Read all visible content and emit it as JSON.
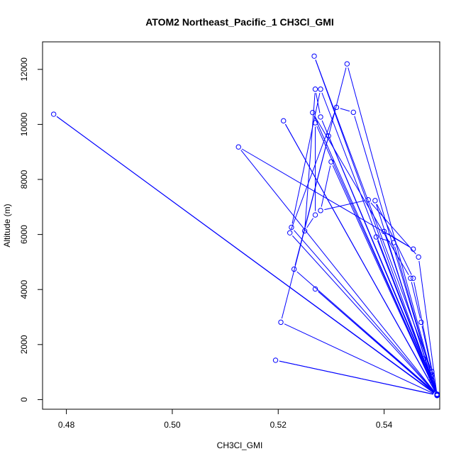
{
  "chart_data": {
    "type": "line",
    "title": "ATOM2 Northeast_Pacific_1 CH3Cl_GMI",
    "xlabel": "CH3Cl_GMI",
    "ylabel": "Altitude (m)",
    "xlim": [
      0.4755,
      0.5505
    ],
    "ylim": [
      -350,
      13000
    ],
    "x_ticks": [
      0.48,
      0.5,
      0.52,
      0.54
    ],
    "x_tick_labels": [
      "0.48",
      "0.50",
      "0.52",
      "0.54"
    ],
    "y_ticks": [
      0,
      2000,
      4000,
      6000,
      8000,
      10000,
      12000
    ],
    "y_tick_labels": [
      "0",
      "2000",
      "4000",
      "6000",
      "8000",
      "10000",
      "12000"
    ],
    "grid": false,
    "legend": "none",
    "series": [
      {
        "color": "#0000ff",
        "marker": "open-circle",
        "points": [
          [
            0.55,
            150
          ],
          [
            0.4776,
            10370
          ],
          [
            0.55,
            170
          ],
          [
            0.5125,
            9180
          ],
          [
            0.5455,
            5470
          ],
          [
            0.54,
            6110
          ],
          [
            0.55,
            160
          ],
          [
            0.521,
            10130
          ],
          [
            0.55,
            180
          ],
          [
            0.5225,
            6260
          ],
          [
            0.528,
            11280
          ],
          [
            0.55,
            200
          ],
          [
            0.523,
            4740
          ],
          [
            0.5295,
            9580
          ],
          [
            0.55,
            170
          ],
          [
            0.5195,
            1430
          ],
          [
            0.55,
            160
          ],
          [
            0.5205,
            2810
          ],
          [
            0.533,
            12200
          ],
          [
            0.549,
            900
          ],
          [
            0.549,
            1020
          ],
          [
            0.5268,
            12480
          ],
          [
            0.55,
            150
          ],
          [
            0.527,
            4020
          ],
          [
            0.55,
            180
          ],
          [
            0.5265,
            10430
          ],
          [
            0.545,
            4410
          ],
          [
            0.547,
            2810
          ],
          [
            0.55,
            160
          ],
          [
            0.5222,
            6060
          ],
          [
            0.531,
            10620
          ],
          [
            0.5342,
            10440
          ],
          [
            0.55,
            190
          ],
          [
            0.527,
            10060
          ],
          [
            0.527,
            6710
          ],
          [
            0.525,
            6130
          ],
          [
            0.527,
            11280
          ],
          [
            0.528,
            10270
          ],
          [
            0.549,
            700
          ],
          [
            0.5383,
            7230
          ],
          [
            0.5455,
            4410
          ],
          [
            0.55,
            170
          ],
          [
            0.5385,
            5910
          ],
          [
            0.5418,
            5700
          ],
          [
            0.55,
            160
          ],
          [
            0.53,
            8640
          ],
          [
            0.528,
            6870
          ],
          [
            0.537,
            7260
          ],
          [
            0.5465,
            5180
          ],
          [
            0.55,
            150
          ],
          [
            0.5475,
            1480
          ],
          [
            0.5488,
            850
          ],
          [
            0.55,
            160
          ]
        ]
      }
    ]
  }
}
